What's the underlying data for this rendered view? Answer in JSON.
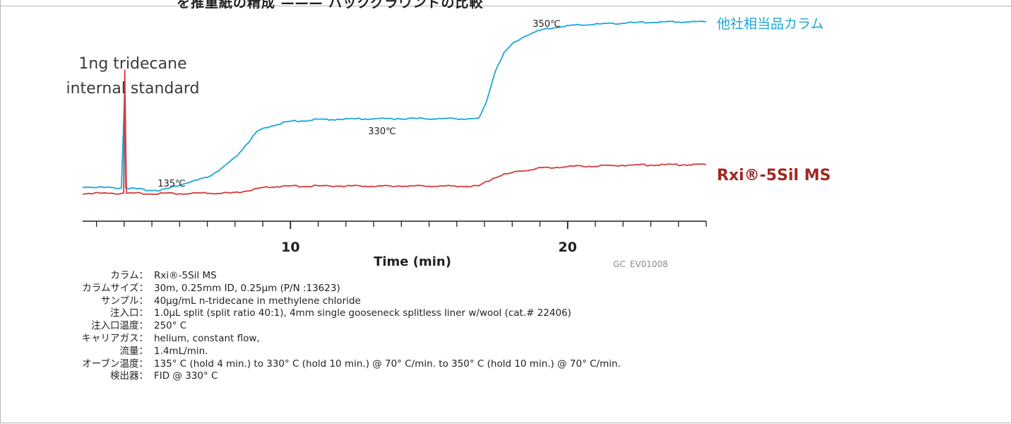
{
  "header_fragment": "を推重紙の精成 ——— バックグラウンドの比較",
  "chart_data": {
    "type": "line",
    "xlabel": "Time (min)",
    "xlim": [
      2.5,
      25
    ],
    "x_ticks": [
      10,
      20
    ],
    "x_tick_labels": [
      "10",
      "20"
    ],
    "ylim": [
      0,
      100
    ],
    "grid": false,
    "series": [
      {
        "name": "他社相当品カラム",
        "color": "#1ba6d9",
        "x": [
          2.5,
          3.6,
          3.9,
          4.02,
          4.05,
          4.1,
          4.5,
          5.0,
          5.3,
          5.6,
          6.0,
          6.5,
          7.0,
          7.5,
          8.0,
          8.4,
          8.8,
          9.0,
          9.5,
          10.0,
          11.0,
          12.0,
          13.0,
          14.0,
          15.0,
          16.0,
          16.8,
          17.05,
          17.2,
          17.4,
          17.7,
          18.0,
          18.3,
          18.7,
          19.2,
          19.8,
          20.5,
          21.5,
          22.5,
          23.5,
          25.0
        ],
        "y": [
          10.5,
          10.0,
          9.8,
          63,
          9.8,
          9.8,
          9.2,
          8.6,
          8.8,
          9.6,
          11.5,
          13.5,
          15.5,
          20,
          26,
          33,
          40,
          41.5,
          44,
          45.5,
          46.5,
          46.8,
          47,
          47,
          47,
          47,
          47,
          55,
          63,
          73,
          82,
          87,
          90,
          93,
          95,
          96.5,
          97.3,
          98,
          98.5,
          98.8,
          99
        ]
      },
      {
        "name": "Rxi®-5Sil MS",
        "color": "#d43c3c",
        "x": [
          2.5,
          3.6,
          3.98,
          4.02,
          4.08,
          4.2,
          5.0,
          6.0,
          7.0,
          8.0,
          8.5,
          9.0,
          9.5,
          10.0,
          12.0,
          14.0,
          16.0,
          16.8,
          17.0,
          17.3,
          17.7,
          18.3,
          19.0,
          20.0,
          21.0,
          22.0,
          23.0,
          25.0
        ],
        "y": [
          7,
          7,
          7,
          73,
          7,
          7,
          6.8,
          6.9,
          7,
          7.2,
          8.5,
          10,
          10.6,
          10.8,
          10.9,
          10.9,
          10.9,
          10.9,
          12.5,
          15,
          17,
          19,
          20.5,
          21.3,
          21.7,
          22,
          22.2,
          22.4
        ]
      }
    ],
    "annotations": {
      "injection_label_line1": "1ng tridecane",
      "injection_label_line2": "internal standard",
      "temp_135": "135℃",
      "temp_330": "330℃",
      "temp_350": "350℃",
      "legend_competitor": "他社相当品カラム",
      "legend_rxi": "Rxi®-5Sil MS",
      "code": "GC_EV01008"
    }
  },
  "info": [
    {
      "key": "カラム：",
      "value": "Rxi®-5Sil MS"
    },
    {
      "key": "カラムサイズ：",
      "value": "30m, 0.25mm ID, 0.25µm   (P/N :13623)"
    },
    {
      "key": "サンプル：",
      "value": "40µg/mL n-tridecane in methylene chloride"
    },
    {
      "key": "注入口：",
      "value": "1.0µL split (split ratio 40:1), 4mm single gooseneck splitless liner w/wool (cat.# 22406)"
    },
    {
      "key": "注入口温度：",
      "value": "250° C"
    },
    {
      "key": "キャリアガス：",
      "value": "helium, constant flow,"
    },
    {
      "key": "流量：",
      "value": "1.4mL/min."
    },
    {
      "key": "オーブン温度：",
      "value": "135° C (hold 4 min.) to 330° C (hold 10 min.) @ 70° C/min. to 350° C (hold 10 min.) @ 70° C/min."
    },
    {
      "key": "検出器：",
      "value": "FID @ 330° C"
    }
  ]
}
